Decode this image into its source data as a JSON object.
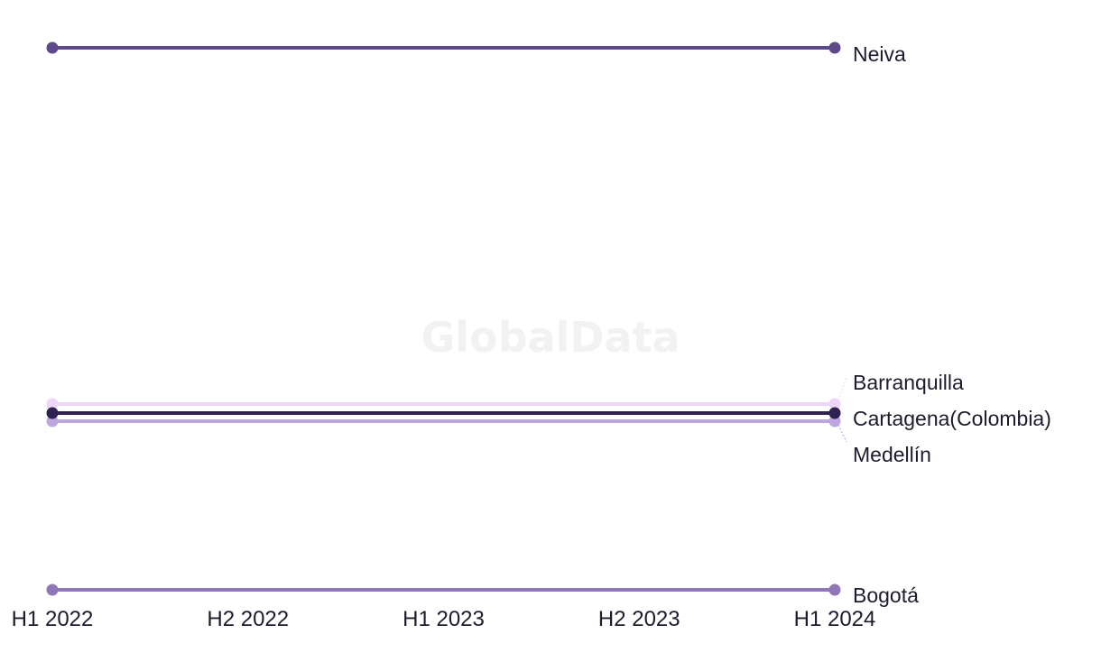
{
  "watermark": "GlobalData",
  "chart_data": {
    "type": "line",
    "title": "",
    "xlabel": "",
    "ylabel": "",
    "categories": [
      "H1 2022",
      "H2 2022",
      "H1 2023",
      "H2 2023",
      "H1 2024"
    ],
    "rank_range": [
      1,
      5
    ],
    "grid": false,
    "legend": "labels at line ends",
    "series": [
      {
        "name": "Neiva",
        "x": [
          "H1 2022",
          "H1 2024"
        ],
        "values": [
          1,
          1
        ],
        "color": "#5e4a8a"
      },
      {
        "name": "Barranquilla",
        "x": [
          "H1 2022",
          "H1 2024"
        ],
        "values": [
          2,
          2
        ],
        "color": "#eed6f8"
      },
      {
        "name": "Cartagena(Colombia)",
        "x": [
          "H1 2022",
          "H1 2024"
        ],
        "values": [
          3,
          3
        ],
        "color": "#2f2150"
      },
      {
        "name": "Medellín",
        "x": [
          "H1 2022",
          "H1 2024"
        ],
        "values": [
          4,
          4
        ],
        "color": "#bea5e0"
      },
      {
        "name": "Bogotá",
        "x": [
          "H1 2022",
          "H1 2024"
        ],
        "values": [
          5,
          5
        ],
        "color": "#9078b8"
      }
    ]
  }
}
